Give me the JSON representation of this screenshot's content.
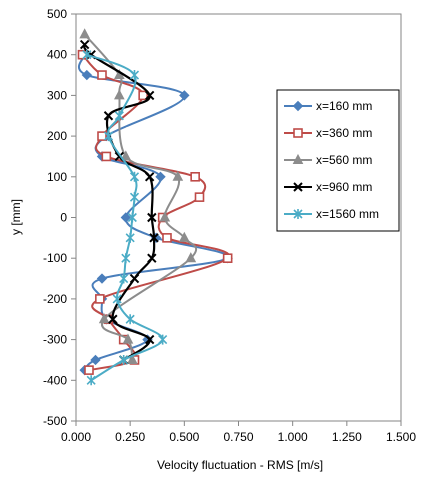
{
  "chart_data": {
    "type": "line",
    "xlabel": "Velocity fluctuation - RMS [m/s]",
    "ylabel": "y [mm]",
    "xlim": [
      0,
      1.5
    ],
    "ylim": [
      -500,
      500
    ],
    "x_ticks": [
      "0.000",
      "0.250",
      "0.500",
      "0.750",
      "1.000",
      "1.250",
      "1.500"
    ],
    "y_ticks": [
      "500",
      "400",
      "300",
      "200",
      "100",
      "0",
      "-100",
      "-200",
      "-300",
      "-400",
      "-500"
    ],
    "grid": false,
    "legend_position": "right",
    "series": [
      {
        "name": "x=160 mm",
        "color": "#4a7ebb",
        "marker": "diamond",
        "points": [
          [
            0.04,
            400
          ],
          [
            0.05,
            350
          ],
          [
            0.5,
            300
          ],
          [
            0.14,
            200
          ],
          [
            0.12,
            150
          ],
          [
            0.39,
            100
          ],
          [
            0.23,
            0
          ],
          [
            0.37,
            -50
          ],
          [
            0.7,
            -100
          ],
          [
            0.12,
            -150
          ],
          [
            0.12,
            -200
          ],
          [
            0.14,
            -250
          ],
          [
            0.33,
            -300
          ],
          [
            0.09,
            -350
          ],
          [
            0.04,
            -375
          ]
        ]
      },
      {
        "name": "x=360 mm",
        "color": "#be4b48",
        "marker": "square",
        "points": [
          [
            0.03,
            400
          ],
          [
            0.12,
            350
          ],
          [
            0.31,
            300
          ],
          [
            0.12,
            200
          ],
          [
            0.14,
            150
          ],
          [
            0.55,
            100
          ],
          [
            0.57,
            50
          ],
          [
            0.4,
            0
          ],
          [
            0.42,
            -50
          ],
          [
            0.7,
            -100
          ],
          [
            0.11,
            -200
          ],
          [
            0.15,
            -250
          ],
          [
            0.22,
            -300
          ],
          [
            0.27,
            -350
          ],
          [
            0.06,
            -375
          ]
        ]
      },
      {
        "name": "x=560 mm",
        "color": "#8c8c8c",
        "marker": "triangle",
        "points": [
          [
            0.04,
            450
          ],
          [
            0.2,
            350
          ],
          [
            0.2,
            300
          ],
          [
            0.23,
            150
          ],
          [
            0.47,
            100
          ],
          [
            0.41,
            0
          ],
          [
            0.5,
            -50
          ],
          [
            0.53,
            -100
          ],
          [
            0.13,
            -250
          ],
          [
            0.24,
            -300
          ],
          [
            0.26,
            -350
          ]
        ]
      },
      {
        "name": "x=960 mm",
        "color": "#000000",
        "marker": "x",
        "points": [
          [
            0.04,
            425
          ],
          [
            0.07,
            400
          ],
          [
            0.34,
            300
          ],
          [
            0.15,
            250
          ],
          [
            0.2,
            150
          ],
          [
            0.34,
            100
          ],
          [
            0.35,
            0
          ],
          [
            0.36,
            -50
          ],
          [
            0.35,
            -100
          ],
          [
            0.27,
            -150
          ],
          [
            0.17,
            -250
          ],
          [
            0.34,
            -300
          ],
          [
            0.22,
            -350
          ]
        ]
      },
      {
        "name": "x=1560 mm",
        "color": "#4bacc6",
        "marker": "star",
        "points": [
          [
            0.05,
            400
          ],
          [
            0.27,
            350
          ],
          [
            0.2,
            250
          ],
          [
            0.15,
            200
          ],
          [
            0.27,
            100
          ],
          [
            0.27,
            50
          ],
          [
            0.26,
            0
          ],
          [
            0.25,
            -50
          ],
          [
            0.23,
            -100
          ],
          [
            0.22,
            -150
          ],
          [
            0.19,
            -200
          ],
          [
            0.25,
            -250
          ],
          [
            0.4,
            -300
          ],
          [
            0.22,
            -350
          ],
          [
            0.07,
            -400
          ]
        ]
      }
    ]
  }
}
